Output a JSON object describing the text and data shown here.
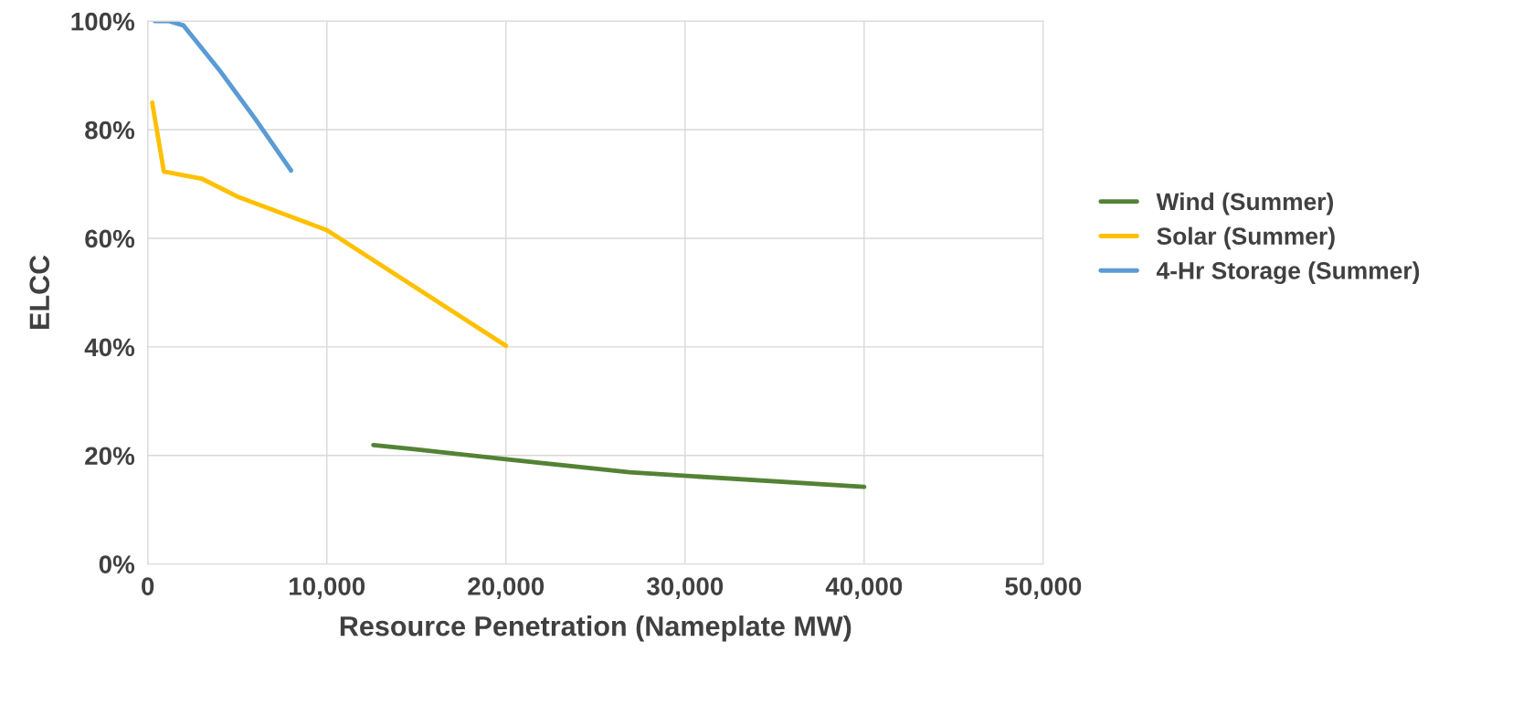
{
  "chart_data": {
    "type": "line",
    "xlabel": "Resource Penetration (Nameplate MW)",
    "ylabel": "ELCC",
    "xlim": [
      0,
      50000
    ],
    "xticks": [
      {
        "value": 0,
        "label": "0"
      },
      {
        "value": 10000,
        "label": "10,000"
      },
      {
        "value": 20000,
        "label": "20,000"
      },
      {
        "value": 30000,
        "label": "30,000"
      },
      {
        "value": 40000,
        "label": "40,000"
      },
      {
        "value": 50000,
        "label": "50,000"
      }
    ],
    "ylim": [
      0,
      1
    ],
    "yticks": [
      {
        "value": 0,
        "label": "0%"
      },
      {
        "value": 0.2,
        "label": "20%"
      },
      {
        "value": 0.4,
        "label": "40%"
      },
      {
        "value": 0.6,
        "label": "60%"
      },
      {
        "value": 0.8,
        "label": "80%"
      },
      {
        "value": 1,
        "label": "100%"
      }
    ],
    "grid": true,
    "legend": "right",
    "marker": "none",
    "line_style": "solid",
    "series": [
      {
        "name": "Wind (Summer)",
        "color": "#548235",
        "x": [
          12600,
          15000,
          20000,
          26900,
          40000
        ],
        "values": [
          0.219,
          0.211,
          0.193,
          0.169,
          0.142
        ]
      },
      {
        "name": "Solar (Summer)",
        "color": "#ffc000",
        "x": [
          250,
          900,
          3000,
          5000,
          10000,
          20000
        ],
        "values": [
          0.85,
          0.723,
          0.71,
          0.677,
          0.615,
          0.402
        ]
      },
      {
        "name": "4-Hr Storage (Summer)",
        "color": "#5b9bd5",
        "x": [
          400,
          1200,
          2000,
          4000,
          6000,
          8000
        ],
        "values": [
          1.0,
          1.0,
          0.992,
          0.91,
          0.82,
          0.725
        ]
      }
    ]
  }
}
